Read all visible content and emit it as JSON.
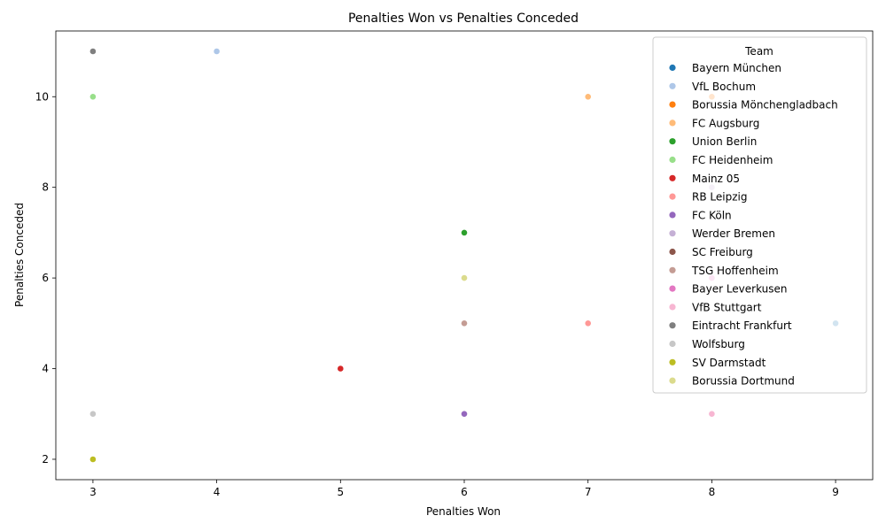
{
  "chart_data": {
    "type": "scatter",
    "title": "Penalties Won vs Penalties Conceded",
    "xlabel": "Penalties Won",
    "ylabel": "Penalties Conceded",
    "xlim": [
      2.7,
      9.3
    ],
    "ylim": [
      1.55,
      11.45
    ],
    "xticks": [
      3,
      4,
      5,
      6,
      7,
      8,
      9
    ],
    "yticks": [
      2,
      4,
      6,
      8,
      10
    ],
    "grid": false,
    "legend": {
      "title": "Team",
      "position": "top-right"
    },
    "series": [
      {
        "name": "Bayern München",
        "color": "#1f77b4",
        "points": [
          [
            9,
            5
          ]
        ]
      },
      {
        "name": "VfL Bochum",
        "color": "#aec7e8",
        "points": [
          [
            4,
            11
          ]
        ]
      },
      {
        "name": "Borussia Mönchengladbach",
        "color": "#ff7f0e",
        "points": [
          [
            8,
            10
          ]
        ]
      },
      {
        "name": "FC Augsburg",
        "color": "#ffbb78",
        "points": [
          [
            7,
            10
          ]
        ]
      },
      {
        "name": "Union Berlin",
        "color": "#2ca02c",
        "points": [
          [
            6,
            7
          ]
        ]
      },
      {
        "name": "FC Heidenheim",
        "color": "#98df8a",
        "points": [
          [
            3,
            10
          ]
        ]
      },
      {
        "name": "Mainz 05",
        "color": "#d62728",
        "points": [
          [
            5,
            4
          ]
        ]
      },
      {
        "name": "RB Leipzig",
        "color": "#ff9896",
        "points": [
          [
            7,
            5
          ]
        ]
      },
      {
        "name": "FC Köln",
        "color": "#9467bd",
        "points": [
          [
            6,
            3
          ]
        ]
      },
      {
        "name": "Werder Bremen",
        "color": "#c5b0d5",
        "points": [
          [
            8,
            8
          ]
        ]
      },
      {
        "name": "SC Freiburg",
        "color": "#8c564b",
        "points": [
          [
            6,
            5
          ]
        ]
      },
      {
        "name": "TSG Hoffenheim",
        "color": "#c49c94",
        "points": [
          [
            6,
            5
          ]
        ]
      },
      {
        "name": "Bayer Leverkusen",
        "color": "#e377c2",
        "points": [
          [
            8,
            6
          ]
        ]
      },
      {
        "name": "VfB Stuttgart",
        "color": "#f7b6d2",
        "points": [
          [
            8,
            3
          ]
        ]
      },
      {
        "name": "Eintracht Frankfurt",
        "color": "#7f7f7f",
        "points": [
          [
            3,
            11
          ]
        ]
      },
      {
        "name": "Wolfsburg",
        "color": "#c7c7c7",
        "points": [
          [
            3,
            3
          ]
        ]
      },
      {
        "name": "SV Darmstadt",
        "color": "#bcbd22",
        "points": [
          [
            3,
            2
          ]
        ]
      },
      {
        "name": "Borussia Dortmund",
        "color": "#dbdb8d",
        "points": [
          [
            6,
            6
          ]
        ]
      }
    ]
  }
}
